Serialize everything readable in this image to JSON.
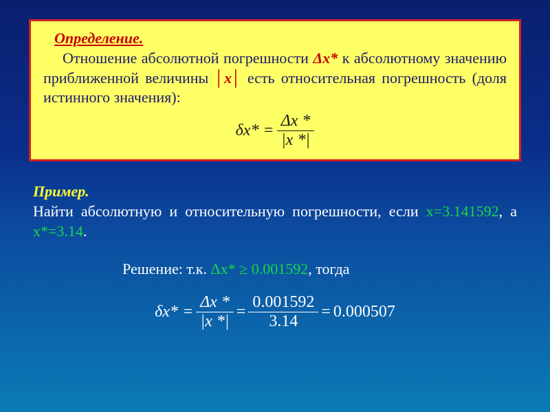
{
  "colors": {
    "background_gradient": [
      "#0a1f6e",
      "#0a2d8a",
      "#0c4a9e",
      "#0a7cb5"
    ],
    "box_bg": "#ffff66",
    "box_border": "#d62020",
    "title_red": "#c80000",
    "body_blue": "#1a1a6a",
    "formula_black": "#1a1a1a",
    "example_yellow": "#ffff33",
    "text_white": "#ffffff",
    "highlight_green": "#15d84c"
  },
  "fonts": {
    "family": "Times New Roman",
    "body_size_pt": 17,
    "formula_size_pt": 18
  },
  "definition": {
    "title": "Определение.",
    "text_before_dx": "Отношение абсолютной погрешности ",
    "delta_x_star": "Δx*",
    "text_mid": " к абсолютному значению приближенной величины ",
    "abs_x": "│x│",
    "text_after": " есть относительная погрешность (доля истинного значения):",
    "formula": {
      "lhs": "δx* =",
      "num": "Δx *",
      "den": "|x *|"
    }
  },
  "example": {
    "title": "Пример.",
    "line1_a": "Найти абсолютную и относительную погрешности, если ",
    "x_val": "x=3.141592",
    "line1_b": ", а ",
    "xstar_val": "x*=3.14",
    "line1_c": ".",
    "solution_prefix": "Решение: т.к.  ",
    "solution_green": "Δx* ≥ 0.001592",
    "solution_suffix": ", тогда",
    "formula2": {
      "lhs": "δx* =",
      "frac1_num": "Δx *",
      "frac1_den": "|x *|",
      "eq1": "=",
      "frac2_num": "0.001592",
      "frac2_den": "3.14",
      "eq2": "=",
      "result": "0.000507"
    }
  }
}
